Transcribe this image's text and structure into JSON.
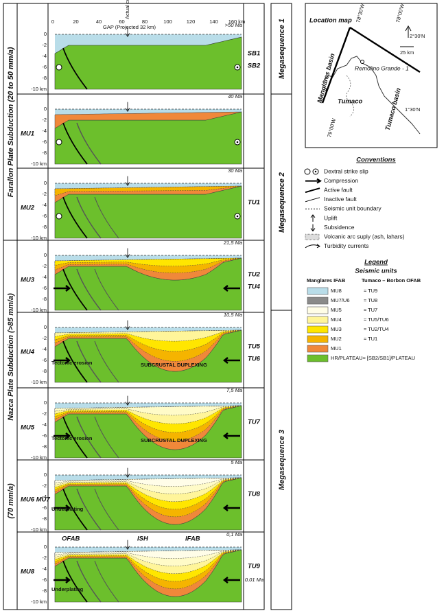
{
  "side_labels": {
    "farallon": "Farallon Plate Subduction (20 to 50 mm/a)",
    "nazca": "Nazca Plate Subduction (>85 mm/a)",
    "nazca_rate": "(70 mm/a)"
  },
  "megasequences": [
    "Megasequence 1",
    "Megasequence 2",
    "Megasequence 3"
  ],
  "top_scale": {
    "ticks": [
      "0",
      "20",
      "40",
      "60",
      "80",
      "100",
      "120",
      "140",
      "160 km"
    ],
    "gap": "GAP (Projected 32 km)",
    "coast": "Actual coast line"
  },
  "depth_ticks": [
    "0",
    "-2",
    "-4",
    "-6",
    "-8",
    "-10 km"
  ],
  "panels": [
    {
      "age": ">50 Ma",
      "tu": [
        "SB1",
        "SB2"
      ],
      "notes": []
    },
    {
      "unit": "MU1",
      "age": "40 Ma",
      "tu": [],
      "notes": []
    },
    {
      "unit": "MU2",
      "age": "30 Ma",
      "tu": [
        "TU1"
      ],
      "notes": []
    },
    {
      "unit": "MU3",
      "age": "21,5 Ma",
      "tu": [
        "TU2",
        "TU4"
      ],
      "notes": []
    },
    {
      "unit": "MU4",
      "age": "10,5 Ma",
      "tu": [
        "TU5",
        "TU6"
      ],
      "notes": [
        "Tectonic erosion",
        "SUBCRUSTAL DUPLEXING"
      ]
    },
    {
      "unit": "MU5",
      "age": "7,5 Ma",
      "tu": [
        "TU7"
      ],
      "notes": [
        "Tectonic erosion",
        "SUBCRUSTAL DUPLEXING"
      ]
    },
    {
      "unit": "MU6 MU7",
      "age": "5 Ma",
      "tu": [
        "TU8"
      ],
      "notes": [
        "Underplating"
      ]
    },
    {
      "unit": "MU8",
      "age": "0,1 Ma",
      "age2": "0,01 Ma",
      "tu": [
        "TU9"
      ],
      "notes": [
        "Underplating",
        "OFAB",
        "ISH",
        "IFAB"
      ]
    }
  ],
  "map": {
    "title": "Location map",
    "lon1": "78°30'W",
    "lon2": "78°00'W",
    "lat1": "2°30'N",
    "basin1": "Manglares basin",
    "well": "Remolino Grande - 1",
    "town": "Tumaco",
    "basin2": "Tumaco basin",
    "lat2": "1°30'N",
    "lon3": "79°00'W",
    "scale": "25 km"
  },
  "conventions": {
    "title": "Conventions",
    "items": [
      "Dextral strike slip",
      "Compression",
      "Active fault",
      "Inactive fault",
      "Seismic unit boundary",
      "Uplift",
      "Subsidence",
      "Volcanic arc suply (ash, lahars)",
      "Turbidity currents"
    ]
  },
  "legend": {
    "title": "Legend",
    "subtitle": "Seismic units",
    "col1": "Manglares IFAB",
    "col2": "Tumaco – Borbon OFAB",
    "rows": [
      {
        "color": "#b9dde9",
        "mu": "MU8",
        "tu": "≈ TU9"
      },
      {
        "color": "#8a8a8a",
        "mu": "MU7/U6",
        "tu": "≈ TU8"
      },
      {
        "color": "#fffde6",
        "mu": "MU5",
        "tu": "≈ TU7"
      },
      {
        "color": "#fff59a",
        "mu": "MU4",
        "tu": "≈ TU5/TU6"
      },
      {
        "color": "#ffe600",
        "mu": "MU3",
        "tu": "≈ TU2/TU4"
      },
      {
        "color": "#f5b400",
        "mu": "MU2",
        "tu": "≈ TU1"
      },
      {
        "color": "#f0883a",
        "mu": "MU1"
      },
      {
        "color": "#6cbf2c",
        "mu": "HR/PLATEAU≈ [SB2/SB1]/PLATEAU"
      }
    ]
  }
}
